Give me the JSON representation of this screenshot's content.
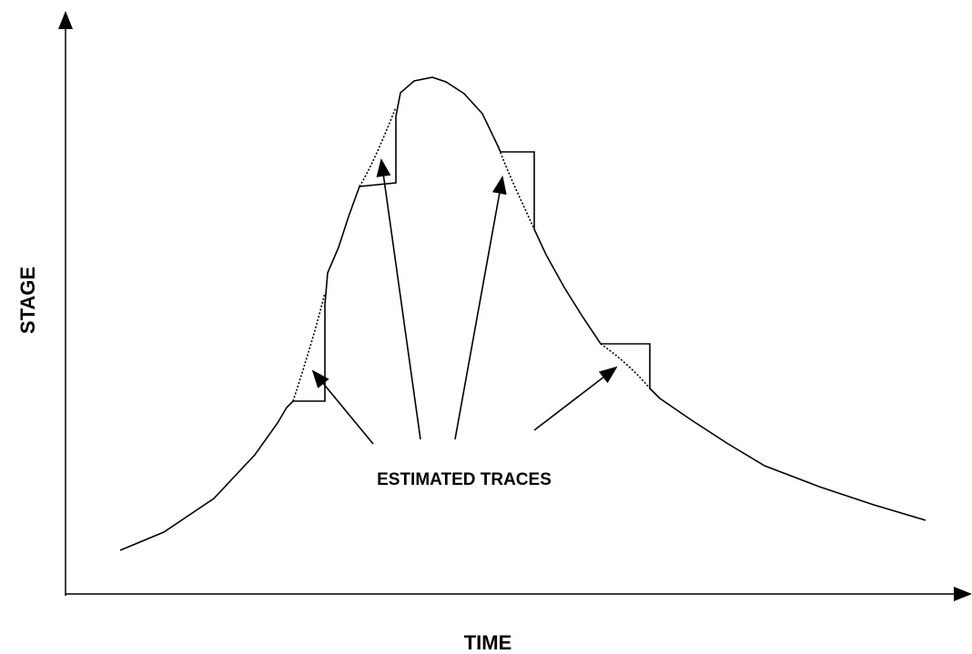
{
  "labels": {
    "y_axis": "STAGE",
    "x_axis": "TIME",
    "annotation": "ESTIMATED TRACES"
  }
}
